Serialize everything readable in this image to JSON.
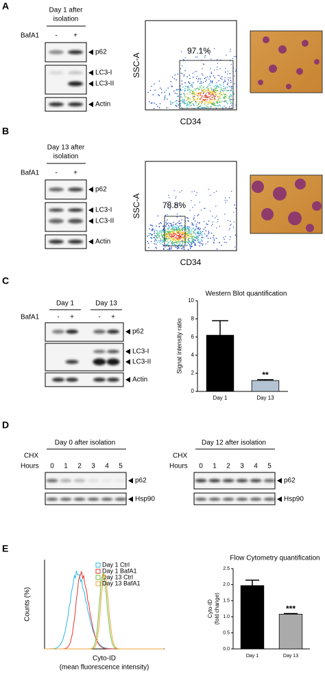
{
  "panels": [
    {
      "label": "A",
      "blot": {
        "header": [
          "Day 1 after",
          "isolation"
        ],
        "treatment": "BafA1",
        "lanes": [
          "-",
          "+"
        ],
        "bands": [
          "p62",
          "LC3-I",
          "LC3-II",
          "Actin"
        ]
      },
      "flow": {
        "y_label": "SSC-A",
        "x_label": "CD34",
        "gate": "97.1%"
      }
    },
    {
      "label": "B",
      "blot": {
        "header": [
          "Day 13 after",
          "isolation"
        ],
        "treatment": "BafA1",
        "lanes": [
          "-",
          "+"
        ],
        "bands": [
          "p62",
          "LC3-I",
          "LC3-II",
          "Actin"
        ]
      },
      "flow": {
        "y_label": "SSC-A",
        "x_label": "CD34",
        "gate": "78.8%"
      }
    },
    {
      "label": "C",
      "blot": {
        "groups": [
          "Day 1",
          "Day 13"
        ],
        "treatment": "BafA1",
        "lanes": [
          "-",
          "+",
          "-",
          "+"
        ],
        "bands": [
          "p62",
          "LC3-I",
          "LC3-II",
          "Actin"
        ]
      }
    },
    {
      "label": "D",
      "blots": [
        {
          "header": "Day 0 after isolation",
          "treatment": "CHX",
          "hours_label": "Hours",
          "hours": [
            0,
            1,
            2,
            3,
            4,
            5
          ],
          "bands": [
            "p62",
            "Hsp90"
          ]
        },
        {
          "header": "Day 12 after isolation",
          "treatment": "CHX",
          "hours_label": "Hours",
          "hours": [
            0,
            1,
            2,
            3,
            4,
            5
          ],
          "bands": [
            "p62",
            "Hsp90"
          ]
        }
      ]
    },
    {
      "label": "E",
      "histogram": {
        "y_label": "Counts (%)",
        "x_label": [
          "Cyto-ID",
          "(mean fluorescence intensity)"
        ],
        "series": [
          {
            "name": "Day 1 Ctrl",
            "color": "#29b6e8"
          },
          {
            "name": "Day 1 BafA1",
            "color": "#e8322e"
          },
          {
            "name": "Day 13 Ctrl",
            "color": "#6cbf3c"
          },
          {
            "name": "Day 13 BafA1",
            "color": "#f0a030"
          }
        ]
      }
    }
  ],
  "chart_data": [
    {
      "type": "bar",
      "title": "Western Blot quantification",
      "y_label": [
        "Signal intensity ratio"
      ],
      "categories": [
        "Day 1",
        "Day 13"
      ],
      "values": [
        6.2,
        1.2
      ],
      "errors": [
        1.6,
        0.1
      ],
      "significance": [
        null,
        "**"
      ],
      "colors": [
        "#000000",
        "#b4c3d3"
      ],
      "ylim": [
        0,
        10
      ],
      "yticks": [
        0,
        2,
        4,
        6,
        8,
        10
      ]
    },
    {
      "type": "bar",
      "title": "Flow Cytometry quantification",
      "y_label": [
        "Cyto-ID",
        "(fold change)"
      ],
      "categories": [
        "Day 1",
        "Day 13"
      ],
      "values": [
        1.97,
        1.08
      ],
      "errors": [
        0.17,
        0.02
      ],
      "significance": [
        null,
        "***"
      ],
      "colors": [
        "#000000",
        "#aaaaaa"
      ],
      "ylim": [
        0,
        2.5
      ],
      "yticks": [
        {
          "value": 0,
          "label": "0.0"
        },
        0.5,
        {
          "value": 1,
          "label": "1.0"
        },
        1.5,
        {
          "value": 2,
          "label": "2.0"
        },
        2.5
      ]
    }
  ]
}
